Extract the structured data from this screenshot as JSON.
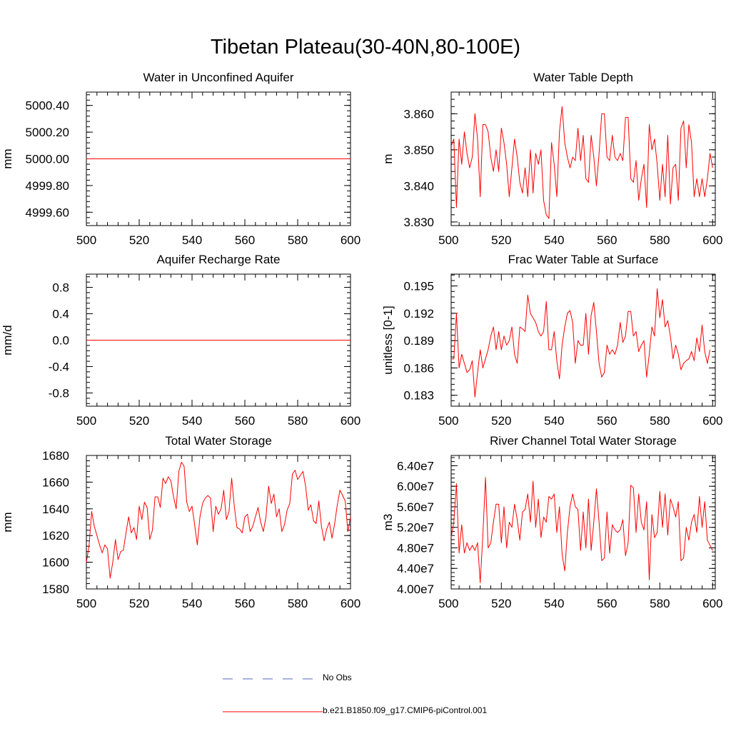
{
  "title": "Tibetan Plateau(30-40N,80-100E)",
  "legend": [
    {
      "label": "No Obs",
      "color": "#5566bb",
      "dash": true
    },
    {
      "label": "b.e21.B1850.f09_g17.CMIP6-piControl.001",
      "color": "#ff0000",
      "dash": false
    }
  ],
  "chart_data": [
    {
      "type": "line",
      "title": "Water in Unconfined Aquifer",
      "ylabel": "mm",
      "xlim": [
        500,
        600
      ],
      "ylim": [
        4999.5,
        5000.5
      ],
      "xticks": [
        500,
        520,
        540,
        560,
        580,
        600
      ],
      "yticks": [
        4999.6,
        4999.8,
        5000.0,
        5000.2,
        5000.4
      ],
      "ytick_labels": [
        "4999.60",
        "4999.80",
        "5000.00",
        "5000.20",
        "5000.40"
      ],
      "x": [
        500,
        600
      ],
      "values": [
        5000.0,
        5000.0
      ],
      "color": "#ff0000"
    },
    {
      "type": "line",
      "title": "Water Table Depth",
      "ylabel": "m",
      "xlim": [
        501,
        601
      ],
      "ylim": [
        3.829,
        3.866
      ],
      "xticks": [
        500,
        520,
        540,
        560,
        580,
        600
      ],
      "yticks": [
        3.83,
        3.84,
        3.85,
        3.86
      ],
      "ytick_labels": [
        "3.830",
        "3.840",
        "3.850",
        "3.860"
      ],
      "x_start": 501,
      "values": [
        3.851,
        3.853,
        3.834,
        3.853,
        3.846,
        3.855,
        3.849,
        3.845,
        3.848,
        3.86,
        3.853,
        3.837,
        3.857,
        3.857,
        3.855,
        3.848,
        3.844,
        3.85,
        3.844,
        3.856,
        3.852,
        3.846,
        3.837,
        3.845,
        3.853,
        3.848,
        3.841,
        3.838,
        3.845,
        3.837,
        3.85,
        3.838,
        3.849,
        3.846,
        3.85,
        3.836,
        3.832,
        3.831,
        3.852,
        3.846,
        3.837,
        3.855,
        3.862,
        3.852,
        3.848,
        3.845,
        3.848,
        3.847,
        3.856,
        3.847,
        3.854,
        3.842,
        3.841,
        3.854,
        3.848,
        3.84,
        3.849,
        3.86,
        3.86,
        3.848,
        3.847,
        3.854,
        3.848,
        3.847,
        3.849,
        3.847,
        3.859,
        3.859,
        3.842,
        3.841,
        3.847,
        3.836,
        3.842,
        3.846,
        3.834,
        3.857,
        3.85,
        3.853,
        3.846,
        3.836,
        3.846,
        3.837,
        3.854,
        3.835,
        3.845,
        3.846,
        3.836,
        3.856,
        3.858,
        3.845,
        3.857,
        3.852,
        3.837,
        3.842,
        3.837,
        3.842,
        3.837,
        3.842,
        3.849,
        3.845
      ]
    },
    {
      "type": "line",
      "title": "Aquifer Recharge Rate",
      "ylabel": "mm/d",
      "xlim": [
        500,
        600
      ],
      "ylim": [
        -1.0,
        1.0
      ],
      "xticks": [
        500,
        520,
        540,
        560,
        580,
        600
      ],
      "yticks": [
        -0.8,
        -0.4,
        0.0,
        0.4,
        0.8
      ],
      "ytick_labels": [
        "-0.8",
        "-0.4",
        "0.0",
        "0.4",
        "0.8"
      ],
      "x": [
        500,
        600
      ],
      "values": [
        0.0,
        0.0
      ],
      "color": "#ff0000"
    },
    {
      "type": "line",
      "title": "Frac Water Table at Surface",
      "ylabel": "unitless [0-1]",
      "xlim": [
        501,
        601
      ],
      "ylim": [
        0.1818,
        0.1963
      ],
      "xticks": [
        500,
        520,
        540,
        560,
        580,
        600
      ],
      "yticks": [
        0.183,
        0.186,
        0.189,
        0.192,
        0.195
      ],
      "ytick_labels": [
        "0.183",
        "0.186",
        "0.189",
        "0.192",
        "0.195"
      ],
      "x_start": 501,
      "values": [
        0.187,
        0.187,
        0.192,
        0.186,
        0.1875,
        0.1865,
        0.1855,
        0.1858,
        0.1868,
        0.1828,
        0.1855,
        0.188,
        0.186,
        0.187,
        0.188,
        0.1895,
        0.1905,
        0.188,
        0.19,
        0.188,
        0.1895,
        0.1885,
        0.189,
        0.1905,
        0.1875,
        0.1865,
        0.1905,
        0.1903,
        0.19,
        0.194,
        0.192,
        0.1915,
        0.191,
        0.19,
        0.1895,
        0.19,
        0.1933,
        0.188,
        0.188,
        0.19,
        0.1868,
        0.1848,
        0.1885,
        0.1905,
        0.192,
        0.1923,
        0.191,
        0.1865,
        0.189,
        0.1885,
        0.1885,
        0.192,
        0.1875,
        0.1918,
        0.1932,
        0.19,
        0.1865,
        0.185,
        0.1855,
        0.1885,
        0.1875,
        0.188,
        0.1875,
        0.1885,
        0.191,
        0.1888,
        0.1895,
        0.1922,
        0.1922,
        0.1895,
        0.19,
        0.1878,
        0.1885,
        0.189,
        0.185,
        0.1875,
        0.1905,
        0.1895,
        0.1947,
        0.1915,
        0.1935,
        0.1905,
        0.1912,
        0.1895,
        0.187,
        0.1885,
        0.1875,
        0.1858,
        0.1865,
        0.1868,
        0.187,
        0.1878,
        0.1868,
        0.1893,
        0.1878,
        0.1907,
        0.1878,
        0.1865,
        0.188
      ]
    },
    {
      "type": "line",
      "title": "Total Water Storage",
      "ylabel": "mm",
      "xlim": [
        500,
        600
      ],
      "ylim": [
        1580,
        1680
      ],
      "xticks": [
        500,
        520,
        540,
        560,
        580,
        600
      ],
      "yticks": [
        1580,
        1600,
        1620,
        1640,
        1660,
        1680
      ],
      "ytick_labels": [
        "1580",
        "1600",
        "1620",
        "1640",
        "1660",
        "1680"
      ],
      "x_start": 500,
      "values": [
        1600,
        1612,
        1638,
        1627,
        1620,
        1613,
        1607,
        1613,
        1610,
        1588,
        1600,
        1617,
        1602,
        1608,
        1609,
        1622,
        1634,
        1622,
        1626,
        1617,
        1642,
        1632,
        1645,
        1641,
        1617,
        1624,
        1649,
        1649,
        1641,
        1663,
        1659,
        1664,
        1661,
        1649,
        1640,
        1668,
        1675,
        1672,
        1645,
        1638,
        1642,
        1628,
        1613,
        1634,
        1644,
        1648,
        1650,
        1648,
        1623,
        1642,
        1636,
        1640,
        1654,
        1632,
        1638,
        1663,
        1642,
        1626,
        1625,
        1622,
        1634,
        1636,
        1623,
        1627,
        1634,
        1641,
        1630,
        1623,
        1634,
        1657,
        1644,
        1651,
        1634,
        1640,
        1623,
        1628,
        1639,
        1644,
        1666,
        1669,
        1662,
        1665,
        1668,
        1657,
        1639,
        1643,
        1631,
        1629,
        1646,
        1627,
        1616,
        1625,
        1630,
        1618,
        1629,
        1643,
        1654,
        1650,
        1646,
        1623,
        1634
      ]
    },
    {
      "type": "line",
      "title": "River Channel Total Water Storage",
      "ylabel": "m3",
      "xlim": [
        501,
        601
      ],
      "ylim": [
        40000000.0,
        66000000.0
      ],
      "xticks": [
        500,
        520,
        540,
        560,
        580,
        600
      ],
      "yticks": [
        40000000.0,
        44000000.0,
        48000000.0,
        52000000.0,
        56000000.0,
        60000000.0,
        64000000.0
      ],
      "ytick_labels": [
        "4.00e7",
        "4.40e7",
        "4.80e7",
        "5.20e7",
        "5.60e7",
        "6.00e7",
        "6.40e7"
      ],
      "x_start": 501,
      "values": [
        50000000.0,
        53000000.0,
        60500000.0,
        47000000.0,
        52500000.0,
        47000000.0,
        49000000.0,
        47500000.0,
        48500000.0,
        47500000.0,
        49000000.0,
        41200000.0,
        50500000.0,
        61700000.0,
        48000000.0,
        49000000.0,
        53000000.0,
        56500000.0,
        56500000.0,
        49000000.0,
        56000000.0,
        48000000.0,
        53000000.0,
        52000000.0,
        56500000.0,
        53500000.0,
        49500000.0,
        55000000.0,
        55500000.0,
        58500000.0,
        53000000.0,
        61000000.0,
        52000000.0,
        57500000.0,
        50000000.0,
        54000000.0,
        53000000.0,
        58000000.0,
        57500000.0,
        58500000.0,
        51000000.0,
        56000000.0,
        46800000.0,
        43500000.0,
        51000000.0,
        56000000.0,
        58500000.0,
        56000000.0,
        55500000.0,
        47500000.0,
        55000000.0,
        48000000.0,
        57500000.0,
        47500000.0,
        53000000.0,
        59500000.0,
        53000000.0,
        45500000.0,
        46000000.0,
        55000000.0,
        47000000.0,
        52500000.0,
        51500000.0,
        51000000.0,
        51500000.0,
        53500000.0,
        46500000.0,
        49000000.0,
        60200000.0,
        59700000.0,
        51000000.0,
        58500000.0,
        53000000.0,
        51500000.0,
        57000000.0,
        41800000.0,
        54500000.0,
        50000000.0,
        51000000.0,
        59000000.0,
        52000000.0,
        58500000.0,
        50500000.0,
        57500000.0,
        56000000.0,
        54000000.0,
        57000000.0,
        45500000.0,
        46000000.0,
        52000000.0,
        49500000.0,
        53000000.0,
        54500000.0,
        51000000.0,
        58000000.0,
        52000000.0,
        57000000.0,
        49500000.0,
        48500000.0,
        47500000.0
      ]
    }
  ]
}
